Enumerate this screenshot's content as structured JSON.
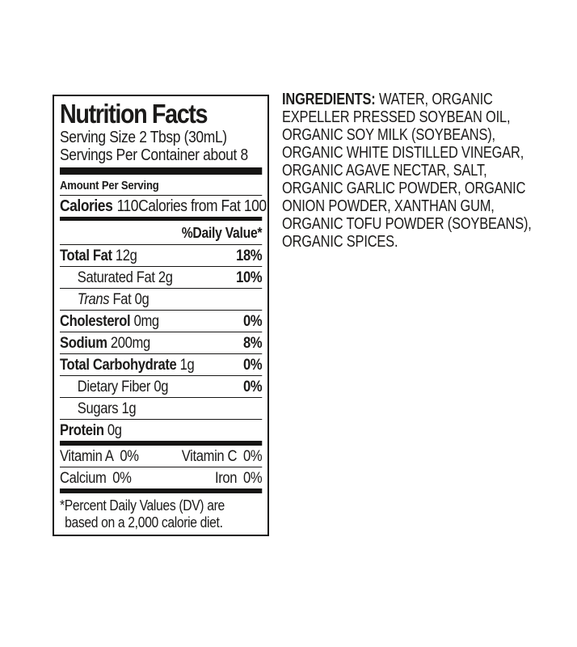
{
  "colors": {
    "background": "#ffffff",
    "text": "#1b1a19",
    "rule": "#161514"
  },
  "nutrition_label": {
    "title": "Nutrition Facts",
    "serving_size": "Serving Size 2 Tbsp (30mL)",
    "servings_per_container": "Servings Per Container about 8",
    "amount_per_serving": "Amount Per Serving",
    "calories": {
      "label": "Calories",
      "value": "110",
      "from_fat": "Calories from Fat 100"
    },
    "daily_value_header": "%Daily Value*",
    "rows": [
      {
        "name": "Total Fat",
        "amount": "12g",
        "dv": "18%"
      },
      {
        "name": "Saturated Fat",
        "amount": "2g",
        "dv": "10%"
      },
      {
        "name": "Trans",
        "amount": "Fat 0g",
        "dv": ""
      },
      {
        "name": "Cholesterol",
        "amount": "0mg",
        "dv": "0%"
      },
      {
        "name": "Sodium",
        "amount": "200mg",
        "dv": "8%"
      },
      {
        "name": "Total Carbohydrate",
        "amount": "1g",
        "dv": "0%"
      },
      {
        "name": "Dietary Fiber",
        "amount": "0g",
        "dv": "0%"
      },
      {
        "name": "Sugars",
        "amount": "1g",
        "dv": ""
      },
      {
        "name": "Protein",
        "amount": "0g",
        "dv": ""
      }
    ],
    "micronutrients": [
      {
        "left_name": "Vitamin A",
        "left_value": "0%",
        "right_name": "Vitamin C",
        "right_value": "0%"
      },
      {
        "left_name": "Calcium",
        "left_value": "0%",
        "right_name": "Iron",
        "right_value": "0%"
      }
    ],
    "footnote_line1": "*Percent Daily Values (DV) are",
    "footnote_line2": "based on a 2,000 calorie diet."
  },
  "ingredients": {
    "label": "INGREDIENTS:",
    "line1_rest": "WATER, ORGANIC",
    "lines": [
      "EXPELLER PRESSED SOYBEAN OIL,",
      "ORGANIC SOY MILK (SOYBEANS),",
      "ORGANIC WHITE DISTILLED VINEGAR,",
      "ORGANIC AGAVE NECTAR, SALT,",
      "ORGANIC GARLIC POWDER, ORGANIC",
      "ONION POWDER, XANTHAN GUM,",
      "ORGANIC TOFU POWDER (SOYBEANS),",
      "ORGANIC SPICES."
    ]
  }
}
